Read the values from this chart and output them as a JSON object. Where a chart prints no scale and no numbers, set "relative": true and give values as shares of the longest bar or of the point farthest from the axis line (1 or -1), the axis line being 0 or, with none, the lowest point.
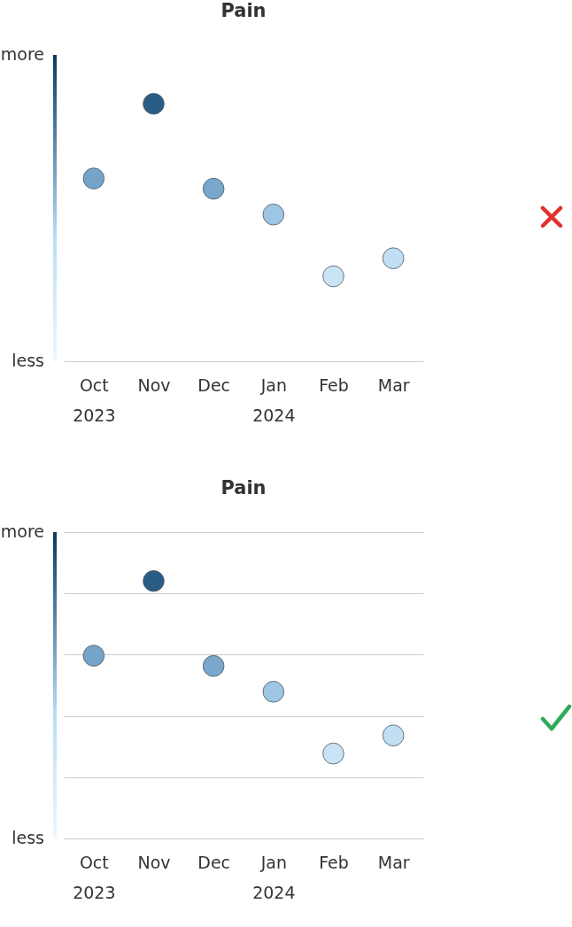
{
  "chart_data": [
    {
      "type": "scatter",
      "title": "Pain",
      "categories": [
        "Oct\n2023",
        "Nov",
        "Dec",
        "Jan\n2024",
        "Feb",
        "Mar"
      ],
      "values": [
        0.71,
        1,
        0.67,
        0.57,
        0.33,
        0.4
      ],
      "colors": [
        "#76a4c8",
        "#2a5d86",
        "#7aa7cb",
        "#9cc6e2",
        "#cbe4f5",
        "#c1def2"
      ],
      "relative": true,
      "annotations": [
        "more",
        "less"
      ]
    },
    {
      "type": "scatter",
      "title": "Pain",
      "categories": [
        "Oct\n2023",
        "Nov",
        "Dec",
        "Jan\n2024",
        "Feb",
        "Mar"
      ],
      "values": [
        0.71,
        1,
        0.67,
        0.57,
        0.33,
        0.4
      ],
      "colors": [
        "#76a4c8",
        "#2a5d86",
        "#7aa7cb",
        "#9cc6e2",
        "#cbe4f5",
        "#c1def2"
      ],
      "relative": true,
      "annotations": [
        "more",
        "less"
      ],
      "grid": true
    }
  ]
}
